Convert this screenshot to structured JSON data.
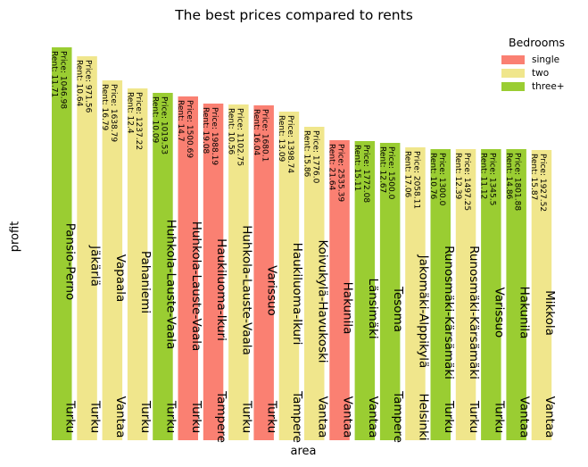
{
  "chart_data": {
    "type": "bar",
    "title": "The best prices compared to rents",
    "xlabel": "area",
    "ylabel": "profit",
    "legend": {
      "title": "Bedrooms",
      "placement": "top-right",
      "entries": [
        {
          "name": "single",
          "color": "#fa8072"
        },
        {
          "name": "two",
          "color": "#f0e68c"
        },
        {
          "name": "three+",
          "color": "#9acd32"
        }
      ]
    },
    "bars": [
      {
        "area": "Pansio-Perno",
        "city": "Turku",
        "price": "1046.98",
        "rent": "11.71",
        "bedrooms": "three+",
        "value": 440
      },
      {
        "area": "Jäkärlä",
        "city": "Turku",
        "price": "971.56",
        "rent": "10.64",
        "bedrooms": "two",
        "value": 430
      },
      {
        "area": "Vapaala",
        "city": "Vantaa",
        "price": "1638.79",
        "rent": "16.79",
        "bedrooms": "two",
        "value": 403
      },
      {
        "area": "Pahaniemi",
        "city": "Turku",
        "price": "1237.22",
        "rent": "12.4",
        "bedrooms": "two",
        "value": 394
      },
      {
        "area": "Huhkola-Lauste-Vaala",
        "city": "Turku",
        "price": "1019.53",
        "rent": "10.09",
        "bedrooms": "three+",
        "value": 389
      },
      {
        "area": "Huhkola-Lauste-Vaala",
        "city": "Turku",
        "price": "1500.69",
        "rent": "14.7",
        "bedrooms": "single",
        "value": 385
      },
      {
        "area": "Haukiluoma-Ikuri",
        "city": "Tampere",
        "price": "1988.19",
        "rent": "19.08",
        "bedrooms": "single",
        "value": 377
      },
      {
        "area": "Huhkola-Lauste-Vaala",
        "city": "Turku",
        "price": "1102.75",
        "rent": "10.56",
        "bedrooms": "two",
        "value": 376
      },
      {
        "area": "Varissuo",
        "city": "Turku",
        "price": "1680.1",
        "rent": "16.04",
        "bedrooms": "single",
        "value": 375
      },
      {
        "area": "Haukiluoma-Ikuri",
        "city": "Tampere",
        "price": "1398.74",
        "rent": "13.09",
        "bedrooms": "two",
        "value": 368
      },
      {
        "area": "Koivukylä-Havukoski",
        "city": "Vantaa",
        "price": "1776.0",
        "rent": "15.86",
        "bedrooms": "two",
        "value": 351
      },
      {
        "area": "Hakunila",
        "city": "Vantaa",
        "price": "2535.39",
        "rent": "21.64",
        "bedrooms": "single",
        "value": 336
      },
      {
        "area": "Länsimäki",
        "city": "Vantaa",
        "price": "1772.08",
        "rent": "15.11",
        "bedrooms": "three+",
        "value": 335
      },
      {
        "area": "Tesoma",
        "city": "Tampere",
        "price": "1500.0",
        "rent": "12.67",
        "bedrooms": "three+",
        "value": 333
      },
      {
        "area": "Jakomäki-Alppikylä",
        "city": "Helsinki",
        "price": "2058.11",
        "rent": "17.06",
        "bedrooms": "two",
        "value": 328
      },
      {
        "area": "Runosmäki-Kärsämäki",
        "city": "Turku",
        "price": "1300.0",
        "rent": "10.76",
        "bedrooms": "three+",
        "value": 326
      },
      {
        "area": "Runosmäki-Kärsämäki",
        "city": "Turku",
        "price": "1497.25",
        "rent": "12.39",
        "bedrooms": "two",
        "value": 326
      },
      {
        "area": "Varissuo",
        "city": "Turku",
        "price": "1345.5",
        "rent": "11.12",
        "bedrooms": "three+",
        "value": 326
      },
      {
        "area": "Hakunila",
        "city": "Vantaa",
        "price": "1801.88",
        "rent": "14.86",
        "bedrooms": "three+",
        "value": 326
      },
      {
        "area": "Mikkola",
        "city": "Vantaa",
        "price": "1927.52",
        "rent": "15.87",
        "bedrooms": "two",
        "value": 325
      }
    ]
  }
}
